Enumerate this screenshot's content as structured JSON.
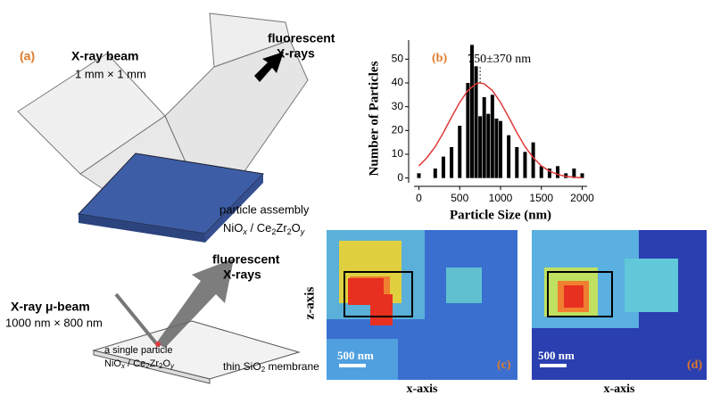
{
  "panel_a": {
    "label": "(a)",
    "beam": "X-ray beam",
    "beam_size": "1 mm × 1 mm",
    "fluo": [
      "fluorescent",
      "X-rays"
    ],
    "sample": "particle assembly",
    "formula": [
      "NiO",
      "x",
      " / Ce",
      "2",
      "Zr",
      "2",
      "O",
      "y"
    ]
  },
  "panel_bottom": {
    "fluo": [
      "fluorescent",
      "X-rays"
    ],
    "beam": "X-ray μ-beam",
    "beam_size": "1000 nm × 800 nm",
    "sample": "a single particle",
    "formula": [
      "NiO",
      "x",
      " / Ce",
      "2",
      "Zr",
      "2",
      "O",
      "y"
    ],
    "membrane": [
      "thin SiO",
      "2",
      " membrane"
    ]
  },
  "maps": {
    "y_label": "z-axis",
    "panels": [
      {
        "label": "(c)",
        "scale": "500 nm",
        "x_label": "x-axis"
      },
      {
        "label": "(d)",
        "scale": "500 nm",
        "x_label": "x-axis"
      }
    ]
  },
  "chart_data": {
    "type": "bar",
    "label": "(b)",
    "annotation": "750±370 nm",
    "xlabel": "Particle Size (nm)",
    "ylabel": "Number of Particles",
    "x": [
      0,
      200,
      300,
      400,
      500,
      600,
      650,
      700,
      750,
      800,
      850,
      900,
      950,
      1000,
      1100,
      1200,
      1300,
      1400,
      1500,
      1600,
      1700,
      1800,
      1900,
      2000
    ],
    "values": [
      2,
      4,
      9,
      13,
      22,
      40,
      56,
      47,
      26,
      34,
      27,
      35,
      25,
      24,
      18,
      13,
      11,
      15,
      5,
      4,
      5,
      2,
      4,
      2
    ],
    "color": "#000000",
    "fit": {
      "x": [
        0,
        100,
        200,
        300,
        400,
        500,
        600,
        700,
        750,
        800,
        900,
        1000,
        1100,
        1200,
        1300,
        1400,
        1500,
        1600,
        1700,
        1800,
        1900,
        2000
      ],
      "values": [
        5.1,
        8.6,
        13.2,
        19.1,
        25.6,
        31.8,
        36.8,
        39.6,
        40,
        39.6,
        36.8,
        31.8,
        25.6,
        19.1,
        13.2,
        8.6,
        5.1,
        2.9,
        1.5,
        0.7,
        0.3,
        0.1
      ],
      "color": "#e03a3a"
    },
    "xlim": [
      -60,
      2060
    ],
    "ylim": [
      -2,
      58
    ],
    "xticks": [
      0,
      500,
      1000,
      1500,
      2000
    ],
    "yticks": [
      0,
      10,
      20,
      30,
      40,
      50
    ]
  }
}
